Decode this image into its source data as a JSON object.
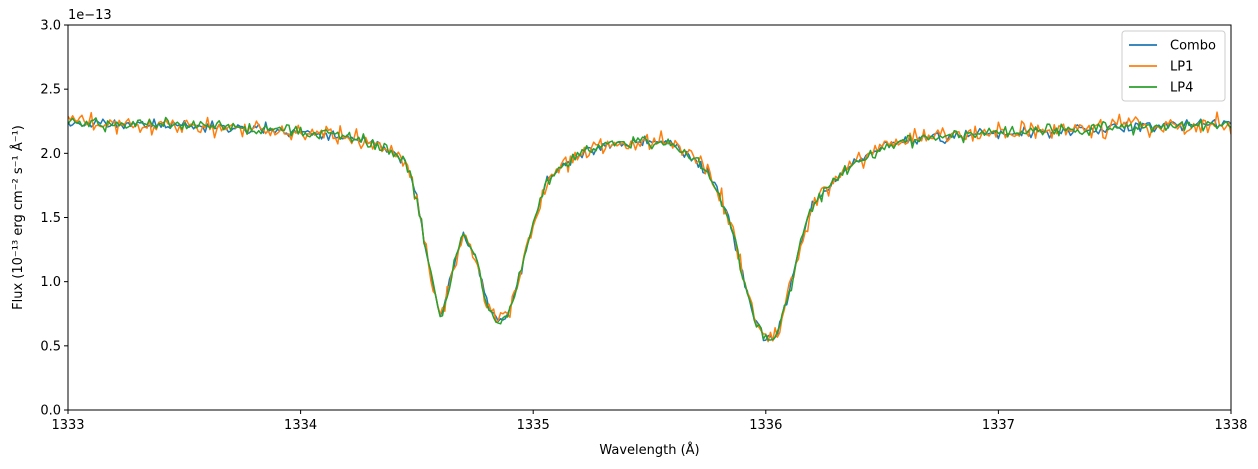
{
  "chart_data": {
    "type": "line",
    "title": "",
    "xlabel": "Wavelength (Å)",
    "ylabel": "Flux (10⁻¹³ erg cm⁻² s⁻¹ Å⁻¹)",
    "offset_text": "1e−13",
    "xlim": [
      1333,
      1338
    ],
    "ylim": [
      0,
      3.0
    ],
    "x_ticks": [
      1333,
      1334,
      1335,
      1336,
      1337,
      1338
    ],
    "x_tick_labels": [
      "1333",
      "1334",
      "1335",
      "1336",
      "1337",
      "1338"
    ],
    "y_ticks": [
      0,
      0.5,
      1.0,
      1.5,
      2.0,
      2.5,
      3.0
    ],
    "y_tick_labels": [
      "0.0",
      "0.5",
      "1.0",
      "1.5",
      "2.0",
      "2.5",
      "3.0"
    ],
    "grid": false,
    "legend_position": "top-right",
    "series": [
      {
        "name": "Combo",
        "color": "#1f77b4",
        "noise": 0.025,
        "seed": 11
      },
      {
        "name": "LP1",
        "color": "#ff7f0e",
        "noise": 0.045,
        "seed": 37
      },
      {
        "name": "LP4",
        "color": "#2ca02c",
        "noise": 0.03,
        "seed": 73
      }
    ],
    "profile": {
      "x": [
        1333.0,
        1333.5,
        1334.0,
        1334.2,
        1334.35,
        1334.45,
        1334.5,
        1334.55,
        1334.6,
        1334.65,
        1334.7,
        1334.75,
        1334.8,
        1334.85,
        1334.9,
        1334.95,
        1335.0,
        1335.05,
        1335.1,
        1335.2,
        1335.3,
        1335.4,
        1335.5,
        1335.6,
        1335.7,
        1335.75,
        1335.8,
        1335.85,
        1335.9,
        1335.95,
        1336.0,
        1336.05,
        1336.1,
        1336.15,
        1336.2,
        1336.3,
        1336.4,
        1336.5,
        1336.7,
        1337.0,
        1337.5,
        1338.0
      ],
      "y": [
        2.23,
        2.22,
        2.17,
        2.12,
        2.05,
        1.95,
        1.65,
        1.15,
        0.72,
        1.05,
        1.37,
        1.2,
        0.85,
        0.67,
        0.78,
        1.1,
        1.45,
        1.75,
        1.88,
        2.0,
        2.05,
        2.08,
        2.09,
        2.07,
        1.95,
        1.85,
        1.68,
        1.45,
        1.05,
        0.72,
        0.55,
        0.6,
        0.9,
        1.3,
        1.6,
        1.8,
        1.95,
        2.05,
        2.13,
        2.15,
        2.2,
        2.23
      ]
    }
  }
}
